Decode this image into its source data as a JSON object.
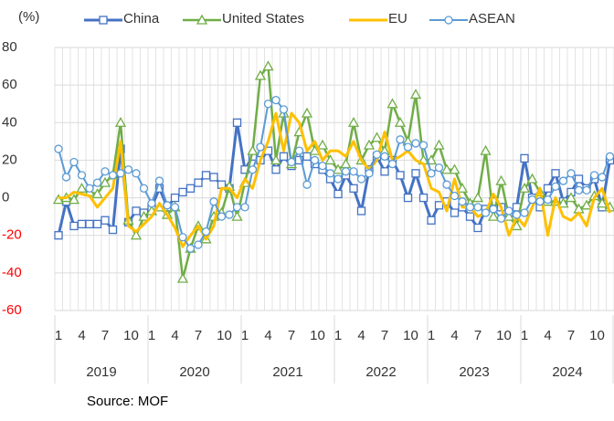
{
  "chart_data": {
    "type": "line",
    "y_label": "(%)",
    "source": "Source: MOF",
    "categories": [
      "1",
      null,
      null,
      "4",
      null,
      null,
      "7",
      null,
      null,
      "10",
      null,
      null,
      "1",
      null,
      null,
      "4",
      null,
      null,
      "7",
      null,
      null,
      "10",
      null,
      null,
      "1",
      null,
      null,
      "4",
      null,
      null,
      "7",
      null,
      null,
      "10",
      null,
      null,
      "1",
      null,
      null,
      "4",
      null,
      null,
      "7",
      null,
      null,
      "10",
      null,
      null,
      "1",
      null,
      null,
      "4",
      null,
      null,
      "7",
      null,
      null,
      "10",
      null,
      null,
      "1",
      null,
      null,
      "4",
      null,
      null,
      "7",
      null,
      null,
      "10",
      null,
      null
    ],
    "years": [
      "2019",
      "2020",
      "2021",
      "2022",
      "2023",
      "2024"
    ],
    "series": [
      {
        "name": "China",
        "color": "#4472c4",
        "marker": "square",
        "values": [
          -20,
          -2,
          -15,
          -14,
          -14,
          -14,
          -12,
          -17,
          26,
          -13,
          -7,
          -8,
          -5,
          5,
          -5,
          0,
          3,
          5,
          8,
          12,
          11,
          7,
          5,
          40,
          15,
          22,
          20,
          25,
          15,
          22,
          17,
          20,
          22,
          18,
          15,
          10,
          2,
          12,
          5,
          -7,
          15,
          22,
          14,
          20,
          12,
          0,
          13,
          0,
          -12,
          -4,
          -2,
          -8,
          -5,
          -10,
          -16,
          -6,
          -2,
          -5,
          -8,
          -5,
          21,
          0,
          -5,
          5,
          13,
          -2,
          3,
          10,
          5,
          10,
          -5,
          20
        ]
      },
      {
        "name": "United States",
        "color": "#70ad47",
        "marker": "triangle",
        "values": [
          -1,
          0,
          -1,
          5,
          3,
          2,
          8,
          12,
          40,
          -12,
          -20,
          -10,
          -7,
          -5,
          -9,
          -5,
          -43,
          -27,
          -15,
          -22,
          -10,
          -8,
          6,
          -10,
          8,
          25,
          65,
          70,
          20,
          45,
          18,
          35,
          45,
          25,
          28,
          20,
          15,
          18,
          40,
          20,
          28,
          32,
          25,
          50,
          40,
          30,
          55,
          20,
          20,
          28,
          15,
          15,
          5,
          -3,
          0,
          25,
          -10,
          9,
          -10,
          -15,
          5,
          10,
          3,
          -2,
          -2,
          -3,
          0,
          -6,
          -4,
          1,
          -3,
          -5
        ]
      },
      {
        "name": "EU",
        "color": "#ffc000",
        "marker": "none",
        "values": [
          0,
          0,
          3,
          2,
          1,
          -5,
          0,
          5,
          30,
          -15,
          -18,
          -14,
          -10,
          -3,
          -9,
          -16,
          -26,
          -20,
          -15,
          -22,
          -15,
          5,
          5,
          0,
          10,
          5,
          20,
          30,
          45,
          25,
          45,
          40,
          25,
          30,
          20,
          25,
          25,
          22,
          30,
          20,
          15,
          20,
          35,
          20,
          22,
          25,
          20,
          18,
          5,
          3,
          -7,
          10,
          -5,
          -5,
          -10,
          -8,
          2,
          -5,
          -20,
          -10,
          -15,
          -5,
          5,
          -20,
          0,
          -10,
          -12,
          -8,
          -15,
          0,
          5,
          -8
        ]
      },
      {
        "name": "ASEAN",
        "color": "#5b9bd5",
        "marker": "circle",
        "values": [
          26,
          11,
          19,
          12,
          5,
          8,
          14,
          12,
          13,
          15,
          13,
          5,
          -3,
          9,
          -4,
          -5,
          -21,
          -27,
          -25,
          -18,
          -2,
          -10,
          -9,
          -5,
          -5,
          15,
          27,
          50,
          52,
          47,
          19,
          25,
          7,
          20,
          17,
          13,
          10,
          14,
          14,
          10,
          13,
          23,
          22,
          18,
          31,
          27,
          29,
          28,
          13,
          16,
          7,
          1,
          -2,
          -5,
          -5,
          -8,
          -6,
          -11,
          -7,
          -9,
          -8,
          -1,
          -2,
          -1,
          6,
          9,
          13,
          4,
          4,
          12,
          11,
          22
        ]
      }
    ],
    "ylim": [
      -60,
      80
    ],
    "yticks": [
      -60,
      -40,
      -20,
      0,
      20,
      40,
      60,
      80
    ],
    "grid": true,
    "negative_tick_color": "#ff0000",
    "tick_color": "#333333"
  }
}
